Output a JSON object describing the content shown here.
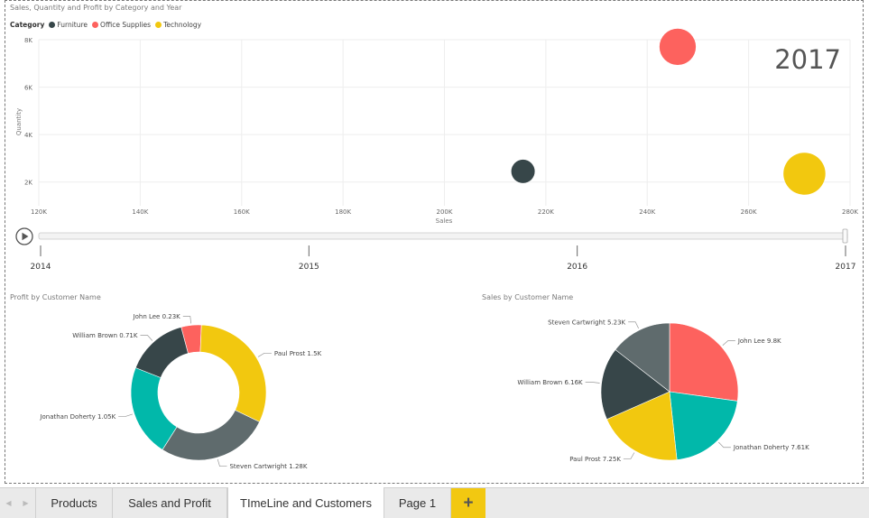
{
  "scatter": {
    "title": "Sales, Quantity and Profit by Category and Year",
    "legend_title": "Category",
    "year_watermark": "2017",
    "xlabel": "Sales",
    "ylabel": "Quantity"
  },
  "colors": {
    "furniture": "#374649",
    "office_supplies": "#fd625e",
    "technology": "#f2c80f",
    "teal": "#01b8aa",
    "gray": "#5f6b6d"
  },
  "timeline": {
    "labels": [
      "2014",
      "2015",
      "2016",
      "2017"
    ],
    "selected": "2017"
  },
  "profit_chart": {
    "title": "Profit by Customer Name"
  },
  "sales_chart": {
    "title": "Sales by Customer Name"
  },
  "tabs": {
    "prev_icon": "chevron-left-icon",
    "next_icon": "chevron-right-icon",
    "items": [
      "Products",
      "Sales and Profit",
      "TImeLine and Customers",
      "Page 1"
    ],
    "active": "TImeLine and Customers",
    "add_label": "+"
  },
  "chart_data": [
    {
      "type": "scatter",
      "title": "Sales, Quantity and Profit by Category and Year",
      "xlabel": "Sales",
      "ylabel": "Quantity",
      "xlim": [
        120000,
        280000
      ],
      "ylim": [
        1000,
        8000
      ],
      "x_ticks": [
        "120K",
        "140K",
        "160K",
        "180K",
        "200K",
        "220K",
        "240K",
        "260K",
        "280K"
      ],
      "y_ticks": [
        "2K",
        "4K",
        "6K",
        "8K"
      ],
      "grid": true,
      "legend_placement": "top-left",
      "series": [
        {
          "name": "Furniture",
          "color": "#374649",
          "x": 215500,
          "y": 2450,
          "size": 1
        },
        {
          "name": "Office Supplies",
          "color": "#fd625e",
          "x": 246000,
          "y": 7700,
          "size": 2.4
        },
        {
          "name": "Technology",
          "color": "#f2c80f",
          "x": 271000,
          "y": 2350,
          "size": 3.2
        }
      ]
    },
    {
      "type": "pie",
      "title": "Profit by Customer Name",
      "donut": true,
      "slices": [
        {
          "label": "John Lee 0.23K",
          "value": 0.23,
          "color": "#fd625e"
        },
        {
          "label": "Paul Prost 1.5K",
          "value": 1.5,
          "color": "#f2c80f"
        },
        {
          "label": "Steven Cartwright 1.28K",
          "value": 1.28,
          "color": "#5f6b6d"
        },
        {
          "label": "Jonathan Doherty 1.05K",
          "value": 1.05,
          "color": "#01b8aa"
        },
        {
          "label": "William Brown 0.71K",
          "value": 0.71,
          "color": "#374649"
        }
      ]
    },
    {
      "type": "pie",
      "title": "Sales by Customer Name",
      "donut": false,
      "slices": [
        {
          "label": "John Lee 9.8K",
          "value": 9.8,
          "color": "#fd625e"
        },
        {
          "label": "Jonathan Doherty 7.61K",
          "value": 7.61,
          "color": "#01b8aa"
        },
        {
          "label": "Paul Prost 7.25K",
          "value": 7.25,
          "color": "#f2c80f"
        },
        {
          "label": "William Brown 6.16K",
          "value": 6.16,
          "color": "#374649"
        },
        {
          "label": "Steven Cartwright 5.23K",
          "value": 5.23,
          "color": "#5f6b6d"
        }
      ]
    }
  ]
}
